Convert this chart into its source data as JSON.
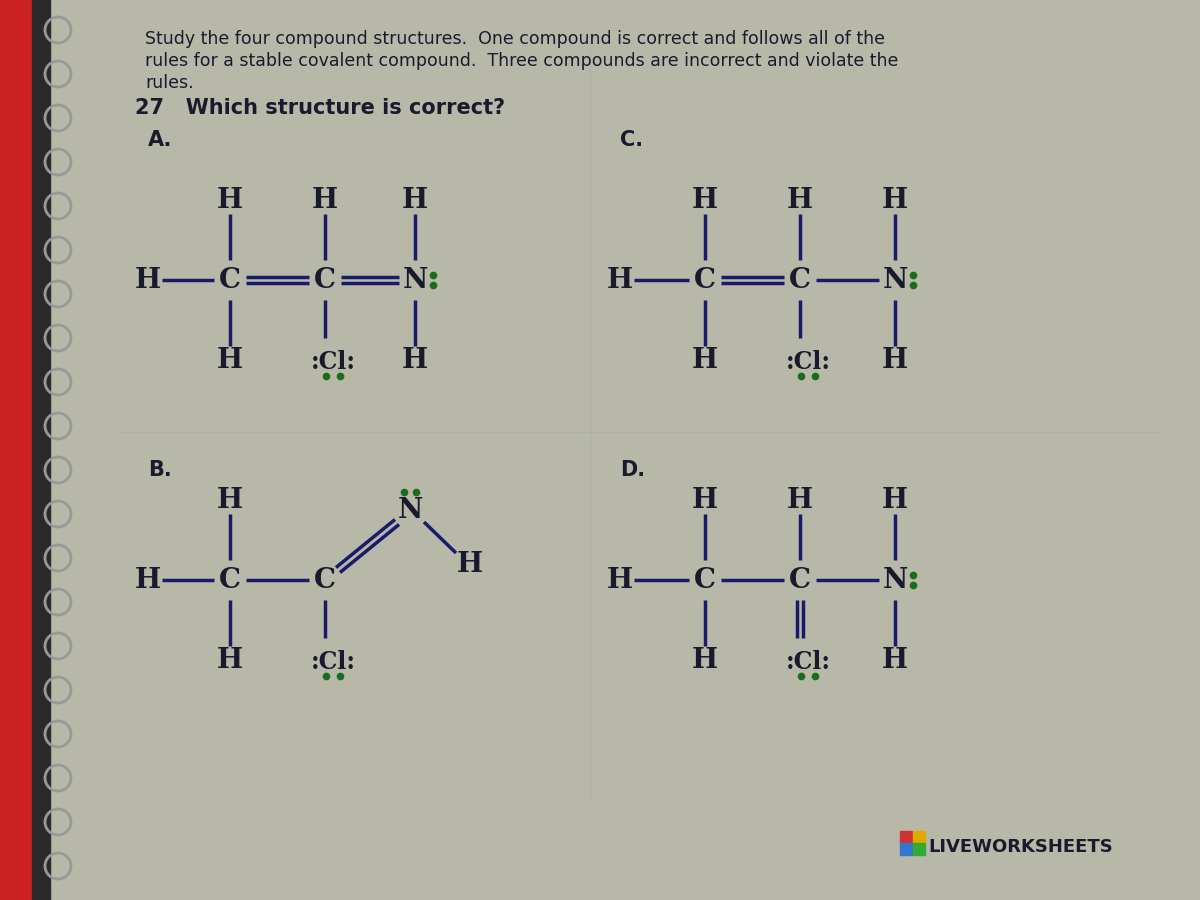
{
  "bg_color": "#b8b8a8",
  "paper_color": "#dedad2",
  "text_color": "#1a1a2e",
  "bond_color": "#1a1a6a",
  "dot_color": "#1a6b1a",
  "title_text1": "Study the four compound structures.  One compound is correct and follows all of the",
  "title_text2": "rules for a stable covalent compound.  Three compounds are incorrect and violate the",
  "title_text3": "rules.",
  "question_text": "27   Which structure is correct?",
  "watermark": "LIVEWORKSHEETS",
  "label_A": "A.",
  "label_B": "B.",
  "label_C": "C.",
  "label_D": "D.",
  "font_size_title": 12.5,
  "font_size_label": 14,
  "font_size_atom": 20,
  "font_size_atom_small": 17,
  "font_size_cl": 17
}
